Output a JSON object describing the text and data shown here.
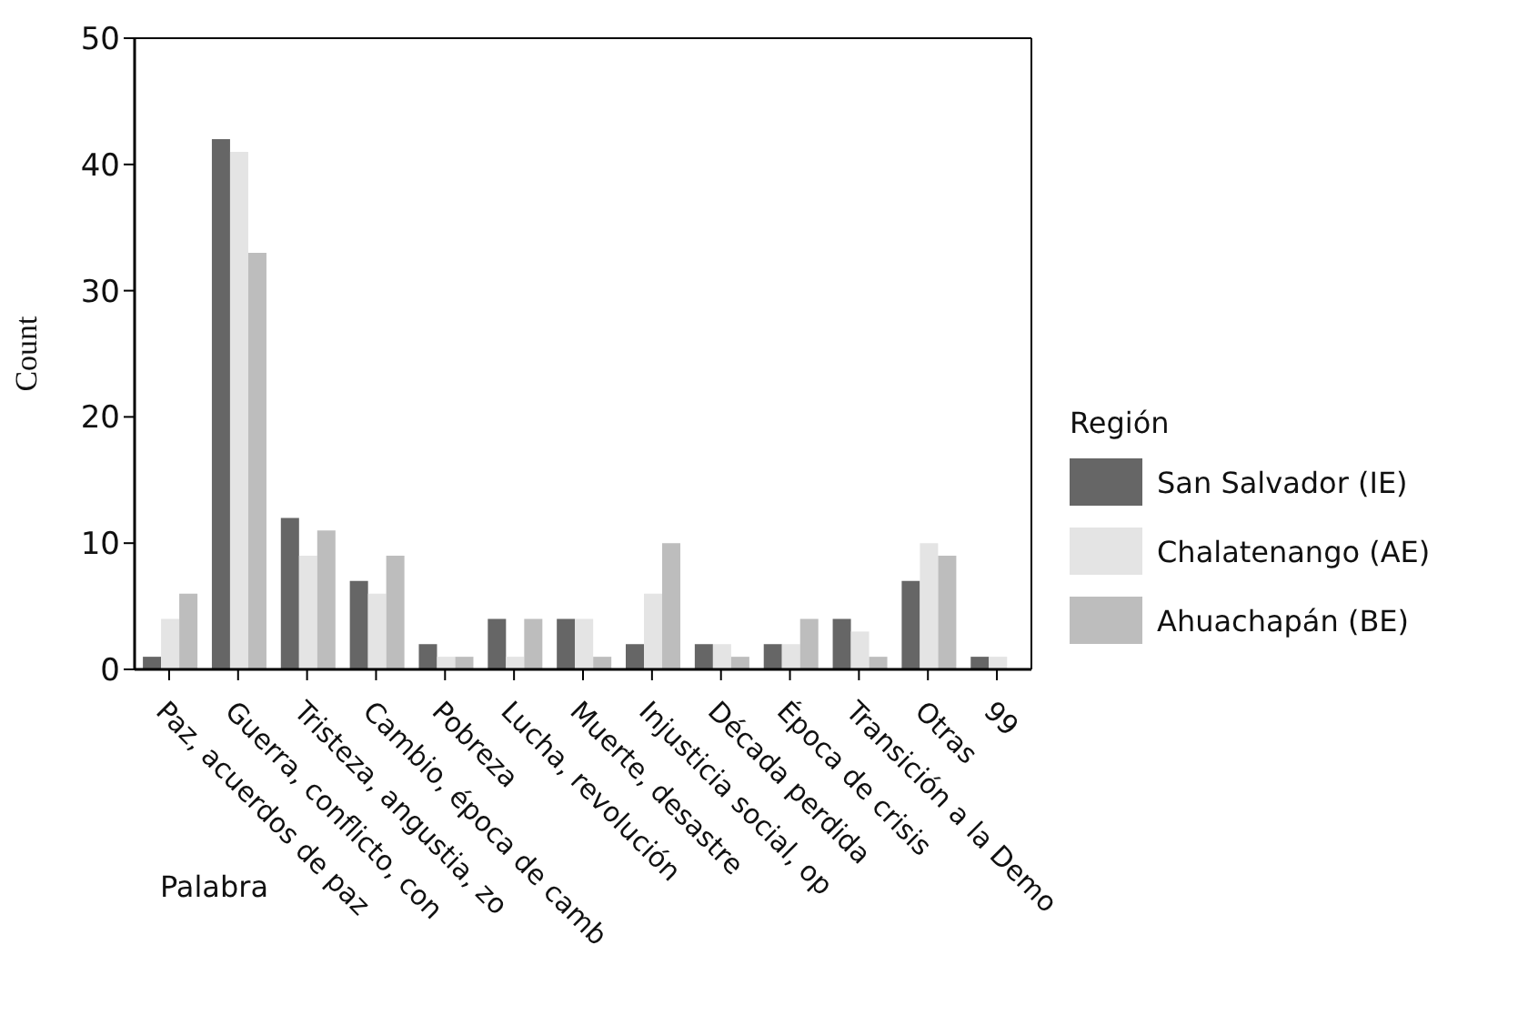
{
  "chart_data": {
    "type": "bar",
    "xlabel": "Palabra",
    "ylabel": "Count",
    "legend_title": "Región",
    "legend": "right",
    "categories": [
      "Paz, acuerdos de paz",
      "Guerra, conflicto, con",
      "Tristeza, angustia, zo",
      "Cambio, época de camb",
      "Pobreza",
      "Lucha, revolución",
      "Muerte, desastre",
      "Injusticia social, op",
      "Década perdida",
      "Época de crisis",
      "Transición a la Demo",
      "Otras",
      "99"
    ],
    "series": [
      {
        "name": "San Salvador (IE)",
        "color": "#666666",
        "values": [
          1,
          42,
          12,
          7,
          2,
          4,
          4,
          2,
          2,
          2,
          4,
          7,
          1
        ]
      },
      {
        "name": "Chalatenango (AE)",
        "color": "#e4e4e4",
        "values": [
          4,
          41,
          9,
          6,
          1,
          1,
          4,
          6,
          2,
          2,
          3,
          10,
          1
        ]
      },
      {
        "name": "Ahuachapán (BE)",
        "color": "#bdbdbd",
        "values": [
          6,
          33,
          11,
          9,
          1,
          4,
          1,
          10,
          1,
          4,
          1,
          9,
          null
        ]
      }
    ],
    "ylim": [
      0,
      50
    ],
    "yticks": [
      0,
      10,
      20,
      30,
      40,
      50
    ],
    "grid": false
  }
}
